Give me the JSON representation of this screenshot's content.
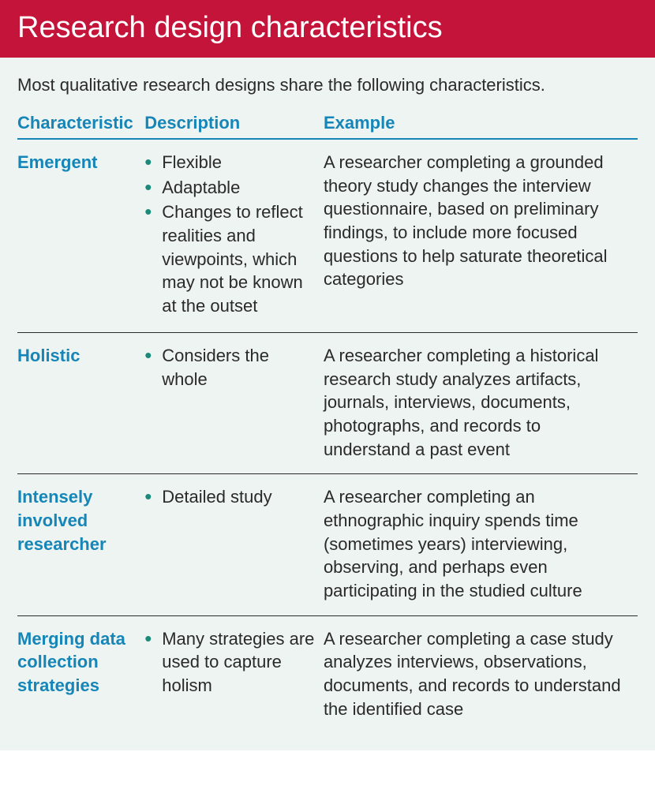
{
  "styling": {
    "header_bg": "#c41439",
    "header_text_color": "#ffffff",
    "body_bg": "#edf4f1",
    "accent_color": "#1685b8",
    "bullet_color": "#1b8a7a",
    "text_color": "#2a2a2a",
    "row_divider_color": "#2a2a2a",
    "header_border_color": "#1685b8",
    "header_fontsize": 38,
    "intro_fontsize": 22,
    "cell_fontsize": 22,
    "col_header_fontsize": 22
  },
  "title": "Research design characteristics",
  "intro": "Most qualitative research designs share the following characteristics.",
  "columns": {
    "characteristic": "Characteristic",
    "description": "Description",
    "example": "Example"
  },
  "rows": [
    {
      "name": "Emergent",
      "descriptions": [
        "Flexible",
        "Adaptable",
        "Changes to reflect realities and viewpoints, which may not be known at the outset"
      ],
      "example": "A researcher completing a grounded theory study changes the interview questionnaire, based on preliminary findings, to include more focused questions to help saturate theoretical categories"
    },
    {
      "name": "Holistic",
      "descriptions": [
        "Considers the whole"
      ],
      "example": "A researcher completing a historical research study analyzes artifacts, journals, interviews, documents, photographs, and records to understand a past event"
    },
    {
      "name": "Intensely involved researcher",
      "descriptions": [
        "Detailed study"
      ],
      "example": "A researcher completing an ethnographic inquiry spends time (sometimes years) interviewing, observing, and perhaps even participating in the studied culture"
    },
    {
      "name": "Merging data collection strategies",
      "descriptions": [
        "Many strategies are used to capture holism"
      ],
      "example": "A researcher completing a case study analyzes interviews, observations, documents, and records to understand the identified case"
    }
  ]
}
